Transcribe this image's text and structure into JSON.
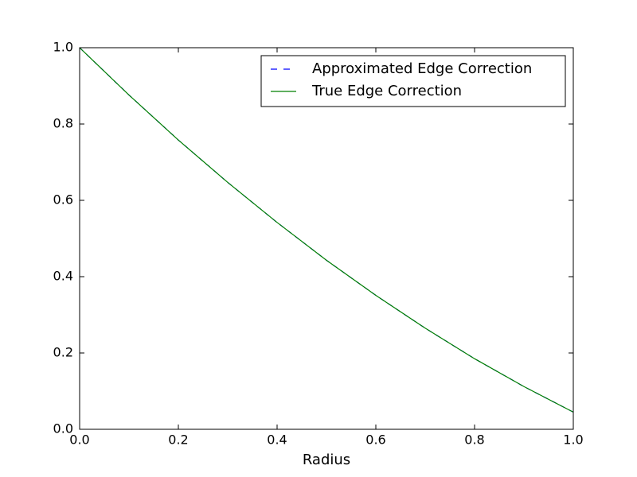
{
  "chart_data": {
    "type": "line",
    "xlabel": "Radius",
    "x": [
      0,
      0.1,
      0.2,
      0.3,
      0.4,
      0.5,
      0.6,
      0.7,
      0.8,
      0.9,
      1
    ],
    "series": [
      {
        "name": "Approximated Edge Correction",
        "color": "#0000ff",
        "dash": true,
        "values": [
          1,
          0.876,
          0.758,
          0.647,
          0.542,
          0.443,
          0.351,
          0.265,
          0.185,
          0.112,
          0.045
        ]
      },
      {
        "name": "True Edge Correction",
        "color": "#008000",
        "dash": false,
        "values": [
          1,
          0.876,
          0.758,
          0.647,
          0.542,
          0.443,
          0.351,
          0.265,
          0.185,
          0.112,
          0.045
        ]
      }
    ],
    "xlim": [
      0,
      1
    ],
    "ylim": [
      0,
      1
    ],
    "xticks": [
      {
        "value": 0,
        "label": "0.0"
      },
      0.2,
      0.4,
      0.6,
      0.8,
      {
        "value": 1,
        "label": "1.0"
      }
    ],
    "yticks": [
      {
        "value": 0,
        "label": "0.0"
      },
      0.2,
      0.4,
      0.6,
      0.8,
      {
        "value": 1,
        "label": "1.0"
      }
    ],
    "legend": "upper right"
  }
}
